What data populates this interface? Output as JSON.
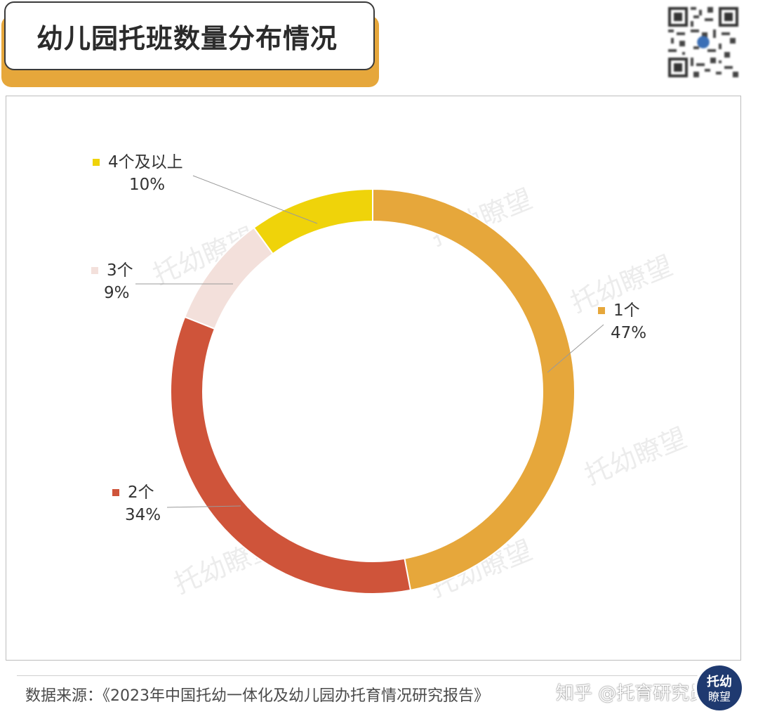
{
  "header": {
    "title": "幼儿园托班数量分布情况"
  },
  "footer": {
    "source": "数据来源：《2023年中国托幼一体化及幼儿园办托育情况研究报告》",
    "credit": "知乎 @托育研究员"
  },
  "watermark": {
    "text": "托幼瞭望"
  },
  "logo": {
    "text_top": "托幼",
    "text_bottom": "瞭望"
  },
  "colors": {
    "accent": "#E6A73B",
    "series_1": "#E6A73B",
    "series_2": "#CF543A",
    "series_3": "#F3E0DB",
    "series_4": "#EFD30A",
    "logo_bg": "#1F3A70"
  },
  "chart_data": {
    "type": "pie",
    "variant": "donut",
    "title": "",
    "start": "12 o'clock, clockwise",
    "slices": [
      {
        "label": "1个",
        "value": 47,
        "value_label": "47%",
        "color": "#E6A73B"
      },
      {
        "label": "2个",
        "value": 34,
        "value_label": "34%",
        "color": "#CF543A"
      },
      {
        "label": "3个",
        "value": 9,
        "value_label": "9%",
        "color": "#F3E0DB"
      },
      {
        "label": "4个及以上",
        "value": 10,
        "value_label": "10%",
        "color": "#EFD30A"
      }
    ]
  }
}
